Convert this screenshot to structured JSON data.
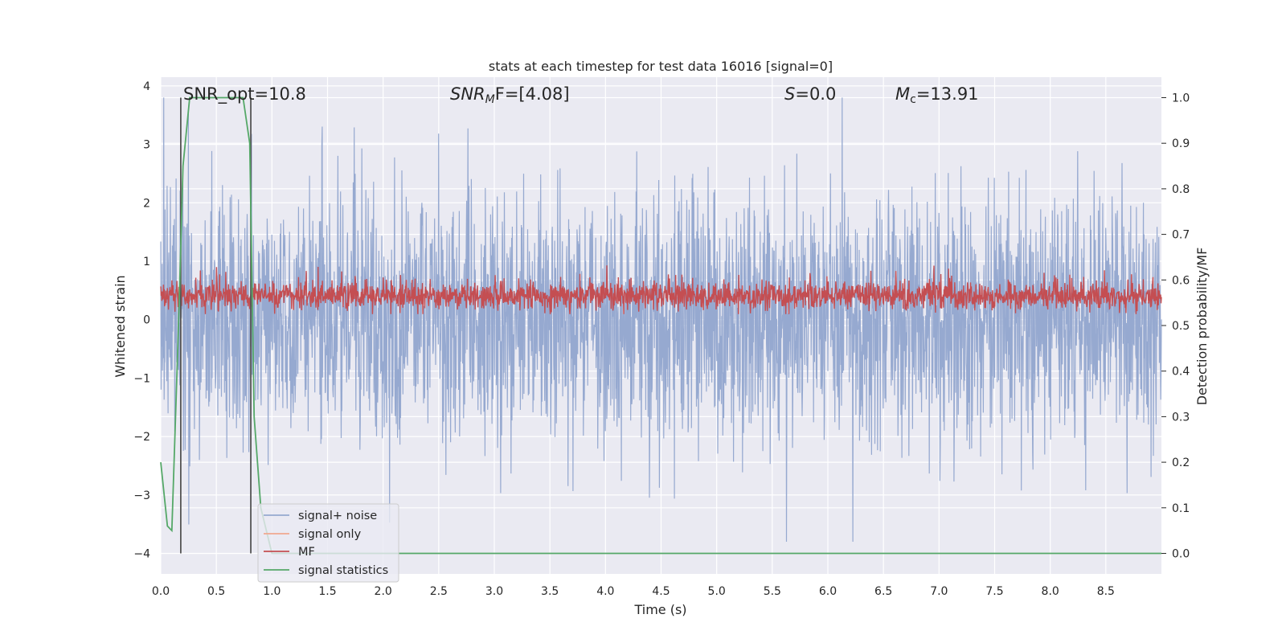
{
  "chart_data": {
    "type": "line",
    "title": "stats at each timestep for test data 16016 [signal=0]",
    "xlabel": "Time (s)",
    "ylabel": "Whitened strain",
    "y2label": "Detection probability/MF",
    "xlim": [
      0.0,
      9.0
    ],
    "ylim": [
      -4.35,
      4.15
    ],
    "y2lim": [
      -0.045,
      1.045
    ],
    "x_ticks": [
      "0.0",
      "0.5",
      "1.0",
      "1.5",
      "2.0",
      "2.5",
      "3.0",
      "3.5",
      "4.0",
      "4.5",
      "5.0",
      "5.5",
      "6.0",
      "6.5",
      "7.0",
      "7.5",
      "8.0",
      "8.5"
    ],
    "y_ticks": [
      "4",
      "3",
      "2",
      "1",
      "0",
      "−1",
      "−2",
      "−3",
      "−4"
    ],
    "y2_ticks": [
      "1.0",
      "0.9",
      "0.8",
      "0.7",
      "0.6",
      "0.5",
      "0.4",
      "0.3",
      "0.2",
      "0.1",
      "0.0"
    ],
    "grid": true,
    "legend_placement": "lower-left",
    "annotations": {
      "snr_opt": "SNR_opt=10.8",
      "snr_mf_base": "SNR",
      "snr_mf_sub": "M",
      "snr_mf_rest": "F=[4.08]",
      "s_sym": "S",
      "s_val": "=0.0",
      "mc_sym": "M",
      "mc_sub": "c",
      "mc_val": "=13.91"
    },
    "vertical_markers_s": [
      0.18,
      0.81
    ],
    "series": [
      {
        "name": "signal+ noise",
        "axis": "left",
        "color": "#96a9d0",
        "style": "dense noise, amplitude about ±2 with peaks to ±3.8"
      },
      {
        "name": "signal only",
        "axis": "left",
        "color": "#f0a890",
        "values": []
      },
      {
        "name": "MF",
        "axis": "right",
        "color": "#c44e52",
        "style": "dense band about 0.55–0.58 on right axis"
      },
      {
        "name": "signal statistics",
        "axis": "right",
        "color": "#55a868",
        "x": [
          0.0,
          0.06,
          0.1,
          0.16,
          0.2,
          0.26,
          0.5,
          0.74,
          0.8,
          0.84,
          0.9,
          1.0,
          9.0
        ],
        "y": [
          0.2,
          0.06,
          0.05,
          0.5,
          0.85,
          1.0,
          1.0,
          1.0,
          0.9,
          0.3,
          0.1,
          0.0,
          0.0
        ]
      }
    ],
    "colors": {
      "background": "#eaeaf2",
      "grid": "#ffffff",
      "noise": "#96a9d0",
      "mf": "#c44e52",
      "signal_only": "#f0a890",
      "stats": "#55a868",
      "marker": "#555555"
    }
  }
}
